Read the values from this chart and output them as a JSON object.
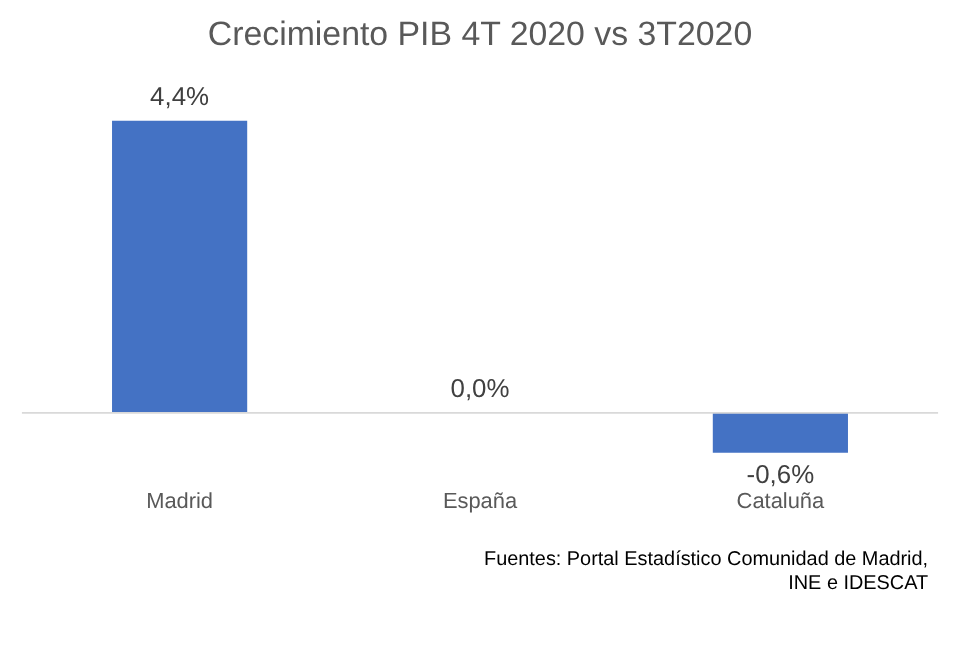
{
  "chart_data": {
    "type": "bar",
    "title": "Crecimiento PIB 4T 2020 vs 3T2020",
    "categories": [
      "Madrid",
      "España",
      "Cataluña"
    ],
    "values": [
      4.4,
      0.0,
      -0.6
    ],
    "color": "#4472c4",
    "value_labels": [
      "4,4%",
      "0,0%",
      "-0,6%"
    ],
    "grid": false,
    "annotations": [
      "Fuentes: Portal Estadístico Comunidad de Madrid,\nINE e IDESCAT"
    ]
  }
}
